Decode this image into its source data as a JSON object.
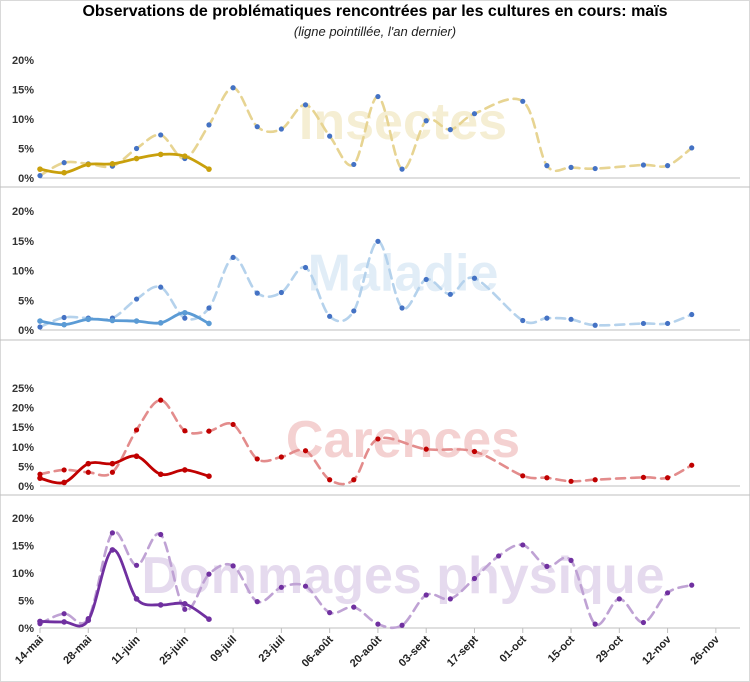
{
  "title": "Observations de problématiques rencontrées par les cultures en cours: maïs",
  "subtitle": "(ligne pointillée, l'an dernier)",
  "chart_data": {
    "type": "line",
    "x_dates": [
      "05-14",
      "05-21",
      "05-28",
      "06-04",
      "06-11",
      "06-18",
      "06-25",
      "07-02",
      "07-09",
      "07-16",
      "07-23",
      "07-30",
      "08-06",
      "08-13",
      "08-20",
      "08-27",
      "09-03",
      "09-10",
      "09-17",
      "09-24",
      "10-01",
      "10-08",
      "10-15",
      "10-22",
      "10-29",
      "11-05",
      "11-12",
      "11-19"
    ],
    "x_tick_labels": [
      "14-mai",
      "28-mai",
      "11-juin",
      "25-juin",
      "09-juil",
      "23-juil",
      "06-août",
      "20-août",
      "03-sept",
      "17-sept",
      "01-oct",
      "15-oct",
      "29-oct",
      "12-nov",
      "26-nov"
    ],
    "x_current_dates": [
      "05-14",
      "05-21",
      "05-28",
      "06-04",
      "06-11",
      "06-18",
      "06-25",
      "07-02"
    ],
    "panels": [
      {
        "name": "Insectes",
        "color": "#c9a00c",
        "y_ticks": [
          "0%",
          "5%",
          "10%",
          "15%",
          "20%"
        ],
        "ylim": [
          0,
          20
        ],
        "current_year": [
          1.5,
          0.9,
          2.3,
          2.4,
          3.3,
          4.0,
          3.7,
          1.5
        ],
        "last_year": [
          0.4,
          2.6,
          2.4,
          2.0,
          5.0,
          7.3,
          3.3,
          9.0,
          15.3,
          8.7,
          8.3,
          12.4,
          7.1,
          2.3,
          13.8,
          1.5,
          9.7,
          8.2,
          10.9,
          null,
          13.0,
          2.1,
          1.8,
          1.6,
          null,
          2.2,
          2.1,
          5.1
        ]
      },
      {
        "name": "Maladie",
        "color": "#5b9bd5",
        "y_ticks": [
          "0%",
          "5%",
          "10%",
          "15%",
          "20%"
        ],
        "ylim": [
          0,
          20
        ],
        "current_year": [
          1.5,
          0.9,
          1.8,
          1.6,
          1.5,
          1.2,
          2.9,
          1.1
        ],
        "last_year": [
          0.5,
          2.1,
          2.0,
          2.0,
          5.2,
          7.2,
          2.0,
          3.7,
          12.2,
          6.2,
          6.3,
          10.5,
          2.3,
          3.2,
          14.9,
          3.7,
          8.5,
          6.0,
          8.7,
          null,
          1.6,
          2.0,
          1.8,
          0.8,
          null,
          1.1,
          1.1,
          2.6
        ]
      },
      {
        "name": "Carences",
        "color": "#c00000",
        "y_ticks": [
          "0%",
          "5%",
          "10%",
          "15%",
          "20%",
          "25%"
        ],
        "ylim": [
          0,
          25
        ],
        "current_year": [
          2.0,
          0.9,
          5.7,
          5.7,
          7.6,
          3.0,
          4.1,
          2.5
        ],
        "last_year": [
          3.0,
          4.1,
          3.5,
          3.5,
          14.3,
          21.9,
          14.1,
          14.0,
          15.7,
          6.9,
          7.4,
          9.0,
          1.6,
          1.6,
          12.0,
          null,
          9.4,
          null,
          8.8,
          null,
          2.6,
          2.1,
          1.2,
          1.6,
          null,
          2.2,
          2.1,
          5.3
        ]
      },
      {
        "name": "Dommages physique",
        "color": "#7030a0",
        "y_ticks": [
          "0%",
          "5%",
          "10%",
          "15%",
          "20%"
        ],
        "ylim": [
          0,
          20
        ],
        "current_year": [
          1.2,
          1.1,
          1.4,
          14.2,
          5.3,
          4.2,
          4.4,
          1.6
        ],
        "last_year": [
          0.8,
          2.6,
          1.7,
          17.3,
          11.4,
          17.0,
          3.4,
          9.8,
          11.3,
          4.8,
          7.4,
          7.6,
          2.8,
          3.8,
          0.7,
          0.5,
          6.0,
          5.3,
          9.0,
          13.1,
          15.1,
          11.2,
          12.3,
          0.7,
          5.3,
          1.0,
          6.4,
          7.8
        ]
      }
    ],
    "legend": "",
    "grid": false
  }
}
